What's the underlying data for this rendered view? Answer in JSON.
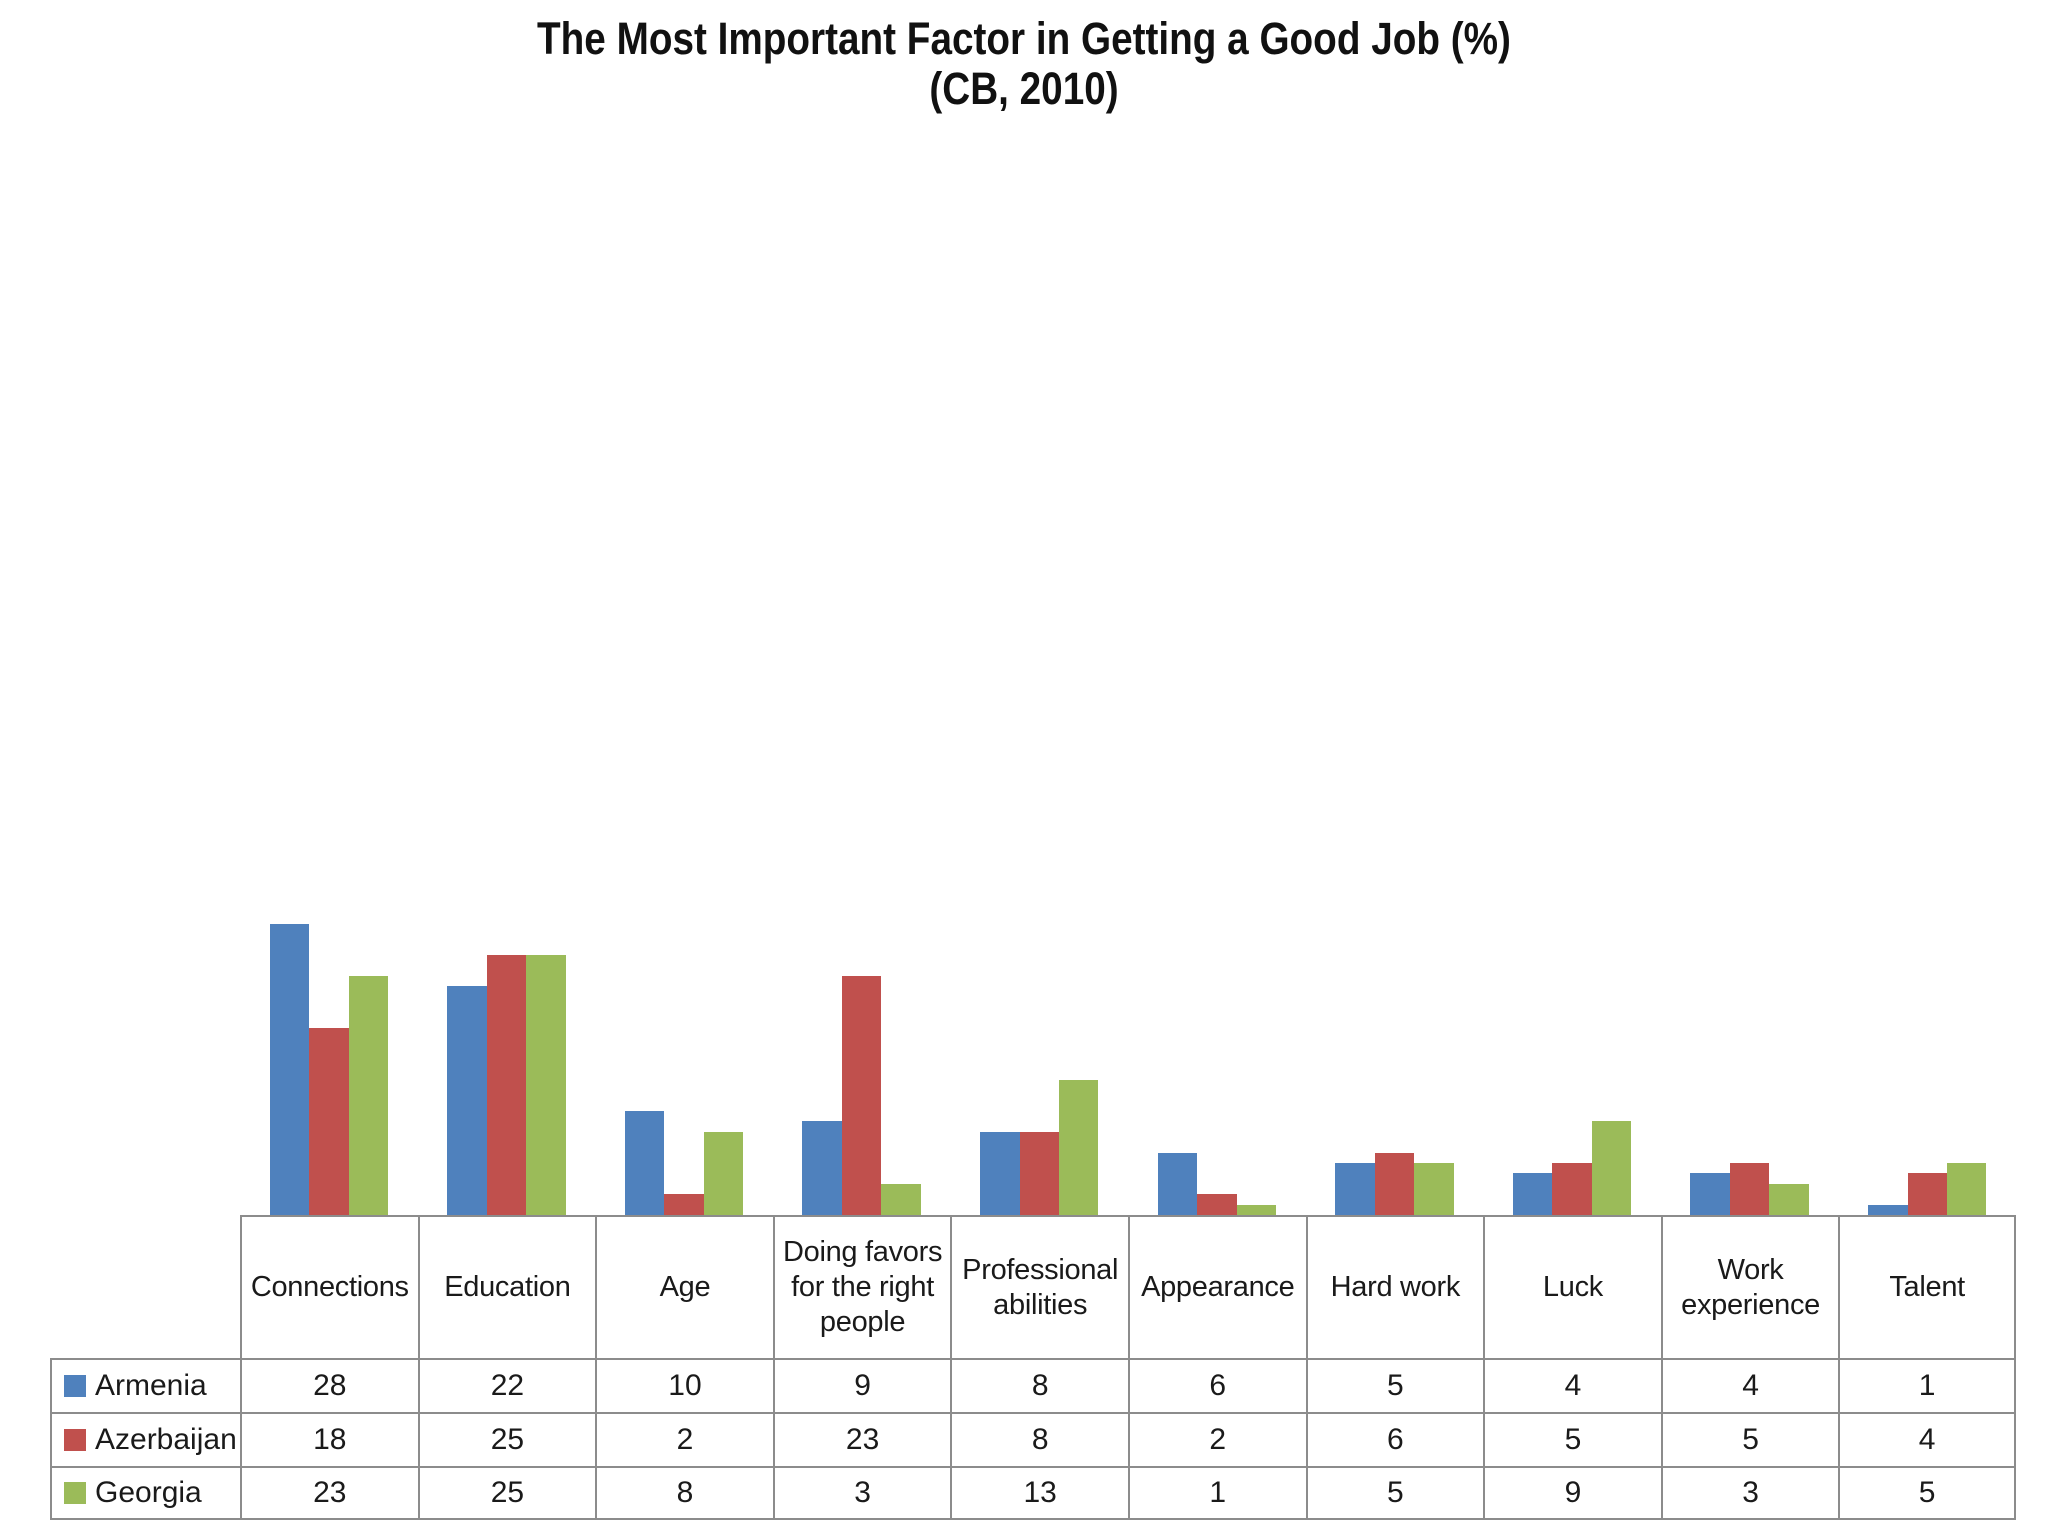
{
  "chart_data": {
    "type": "bar",
    "title": "The Most Important Factor in Getting a Good Job (%)",
    "subtitle": "(CB, 2010)",
    "categories": [
      "Connections",
      "Education",
      "Age",
      "Doing favors for the right people",
      "Professional abilities",
      "Appearance",
      "Hard work",
      "Luck",
      "Work experience",
      "Talent"
    ],
    "series": [
      {
        "name": "Armenia",
        "color": "#4F81BD",
        "values": [
          28,
          22,
          10,
          9,
          8,
          6,
          5,
          4,
          4,
          1
        ]
      },
      {
        "name": "Azerbaijan",
        "color": "#C0504D",
        "values": [
          18,
          25,
          2,
          23,
          8,
          2,
          6,
          5,
          5,
          4
        ]
      },
      {
        "name": "Georgia",
        "color": "#9BBB59",
        "values": [
          23,
          25,
          8,
          3,
          13,
          1,
          5,
          9,
          3,
          5
        ]
      }
    ],
    "ylim": [
      0,
      100
    ],
    "y_axis_visible": false,
    "gridlines": false,
    "legend_position": "data-table-left",
    "data_table": true,
    "axis_line_color": "#8c8c8c",
    "text_color": "#1a1a1a"
  }
}
